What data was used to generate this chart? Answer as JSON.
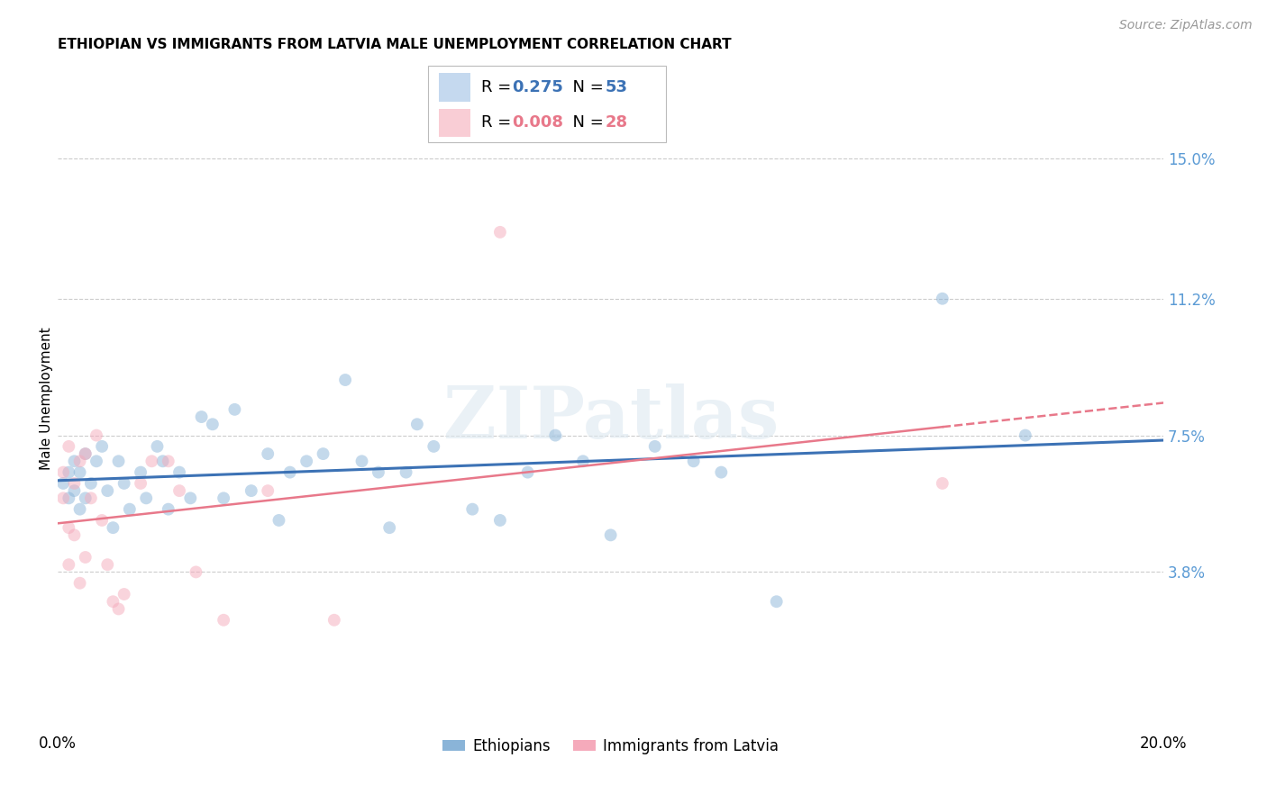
{
  "title": "ETHIOPIAN VS IMMIGRANTS FROM LATVIA MALE UNEMPLOYMENT CORRELATION CHART",
  "source": "Source: ZipAtlas.com",
  "ylabel": "Male Unemployment",
  "watermark": "ZIPatlas",
  "xlim": [
    0.0,
    0.2
  ],
  "ylim": [
    -0.005,
    0.175
  ],
  "yticks": [
    0.038,
    0.075,
    0.112,
    0.15
  ],
  "ytick_labels": [
    "3.8%",
    "7.5%",
    "11.2%",
    "15.0%"
  ],
  "xticks": [
    0.0,
    0.05,
    0.1,
    0.15,
    0.2
  ],
  "xtick_labels": [
    "0.0%",
    "",
    "",
    "",
    "20.0%"
  ],
  "blue_R": 0.275,
  "blue_N": 53,
  "pink_R": 0.008,
  "pink_N": 28,
  "blue_color": "#8ab4d8",
  "pink_color": "#f5aabb",
  "blue_line_color": "#3c72b5",
  "pink_line_color": "#e8788a",
  "legend_box_blue": "#c5d9ef",
  "legend_box_pink": "#f9cdd5",
  "background_color": "#ffffff",
  "blue_scatter_x": [
    0.001,
    0.002,
    0.002,
    0.003,
    0.003,
    0.004,
    0.004,
    0.005,
    0.005,
    0.006,
    0.007,
    0.008,
    0.009,
    0.01,
    0.011,
    0.012,
    0.013,
    0.015,
    0.016,
    0.018,
    0.019,
    0.02,
    0.022,
    0.024,
    0.026,
    0.028,
    0.03,
    0.032,
    0.035,
    0.038,
    0.04,
    0.042,
    0.045,
    0.048,
    0.052,
    0.055,
    0.058,
    0.06,
    0.063,
    0.065,
    0.068,
    0.075,
    0.08,
    0.085,
    0.09,
    0.095,
    0.1,
    0.108,
    0.115,
    0.12,
    0.13,
    0.16,
    0.175
  ],
  "blue_scatter_y": [
    0.062,
    0.065,
    0.058,
    0.068,
    0.06,
    0.065,
    0.055,
    0.07,
    0.058,
    0.062,
    0.068,
    0.072,
    0.06,
    0.05,
    0.068,
    0.062,
    0.055,
    0.065,
    0.058,
    0.072,
    0.068,
    0.055,
    0.065,
    0.058,
    0.08,
    0.078,
    0.058,
    0.082,
    0.06,
    0.07,
    0.052,
    0.065,
    0.068,
    0.07,
    0.09,
    0.068,
    0.065,
    0.05,
    0.065,
    0.078,
    0.072,
    0.055,
    0.052,
    0.065,
    0.075,
    0.068,
    0.048,
    0.072,
    0.068,
    0.065,
    0.03,
    0.112,
    0.075
  ],
  "pink_scatter_x": [
    0.001,
    0.001,
    0.002,
    0.002,
    0.002,
    0.003,
    0.003,
    0.004,
    0.004,
    0.005,
    0.005,
    0.006,
    0.007,
    0.008,
    0.009,
    0.01,
    0.011,
    0.012,
    0.015,
    0.017,
    0.02,
    0.022,
    0.025,
    0.03,
    0.038,
    0.05,
    0.08,
    0.16
  ],
  "pink_scatter_y": [
    0.065,
    0.058,
    0.072,
    0.05,
    0.04,
    0.062,
    0.048,
    0.068,
    0.035,
    0.07,
    0.042,
    0.058,
    0.075,
    0.052,
    0.04,
    0.03,
    0.028,
    0.032,
    0.062,
    0.068,
    0.068,
    0.06,
    0.038,
    0.025,
    0.06,
    0.025,
    0.13,
    0.062
  ],
  "title_fontsize": 11,
  "axis_label_fontsize": 11,
  "tick_fontsize": 12,
  "source_fontsize": 10,
  "marker_size": 10,
  "marker_alpha": 0.5
}
